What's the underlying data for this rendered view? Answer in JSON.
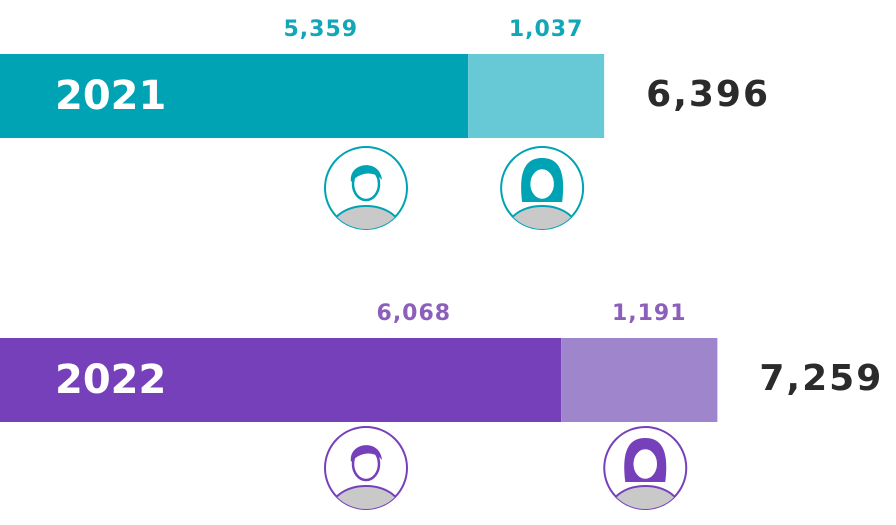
{
  "chart_data": {
    "type": "bar",
    "orientation": "horizontal",
    "stacked": true,
    "categories": [
      "2021",
      "2022"
    ],
    "series": [
      {
        "colors": [
          "#00a3b4",
          "#7740bb"
        ],
        "label_colors": [
          "#12a6b6",
          "#8b5fba"
        ],
        "values": [
          5359,
          6068
        ],
        "value_labels": [
          "5,359",
          "6,068"
        ]
      },
      {
        "colors": [
          "#67c9d5",
          "#9f86cc"
        ],
        "label_colors": [
          "#12a6b6",
          "#8b5fba"
        ],
        "values": [
          1037,
          1191
        ],
        "value_labels": [
          "1,037",
          "1,191"
        ]
      }
    ],
    "totals": [
      6396,
      7259
    ],
    "total_labels": [
      "6,396",
      "7,259"
    ]
  }
}
